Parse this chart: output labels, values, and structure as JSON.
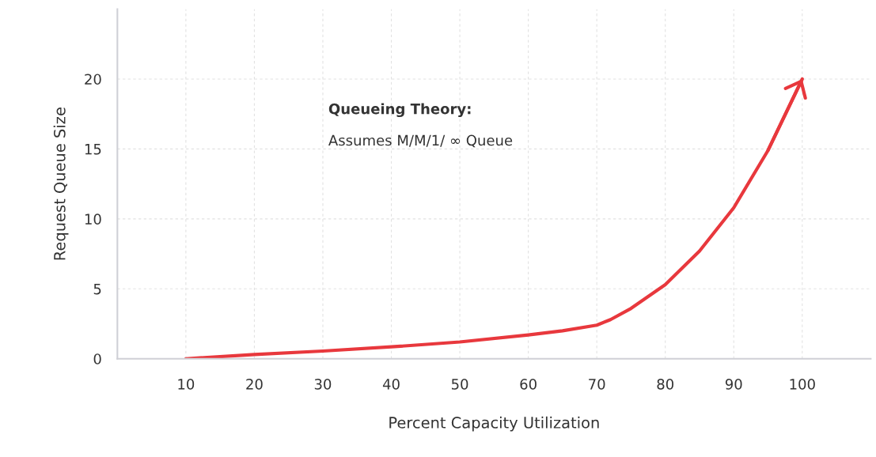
{
  "chart_data": {
    "type": "line",
    "xlabel": "Percent Capacity Utilization",
    "ylabel": "Request Queue Size",
    "annotations": [
      "Queueing Theory:",
      "Assumes M/M/1/ ∞ Queue"
    ],
    "x": [
      10,
      20,
      30,
      40,
      50,
      60,
      65,
      70,
      72,
      75,
      80,
      85,
      90,
      95,
      100
    ],
    "series": [
      {
        "color": "#e8383d",
        "values": [
          0,
          0.3,
          0.55,
          0.85,
          1.2,
          1.7,
          2.0,
          2.4,
          2.8,
          3.6,
          5.3,
          7.7,
          10.8,
          14.9,
          20
        ]
      }
    ],
    "xlim": [
      0,
      110
    ],
    "xticks": [
      10,
      20,
      30,
      40,
      50,
      60,
      70,
      80,
      90,
      100
    ],
    "ylim": [
      0,
      25
    ],
    "yticks": [
      0,
      5,
      10,
      15,
      20
    ],
    "grid": true,
    "marker": "none",
    "line_style": "solid"
  }
}
